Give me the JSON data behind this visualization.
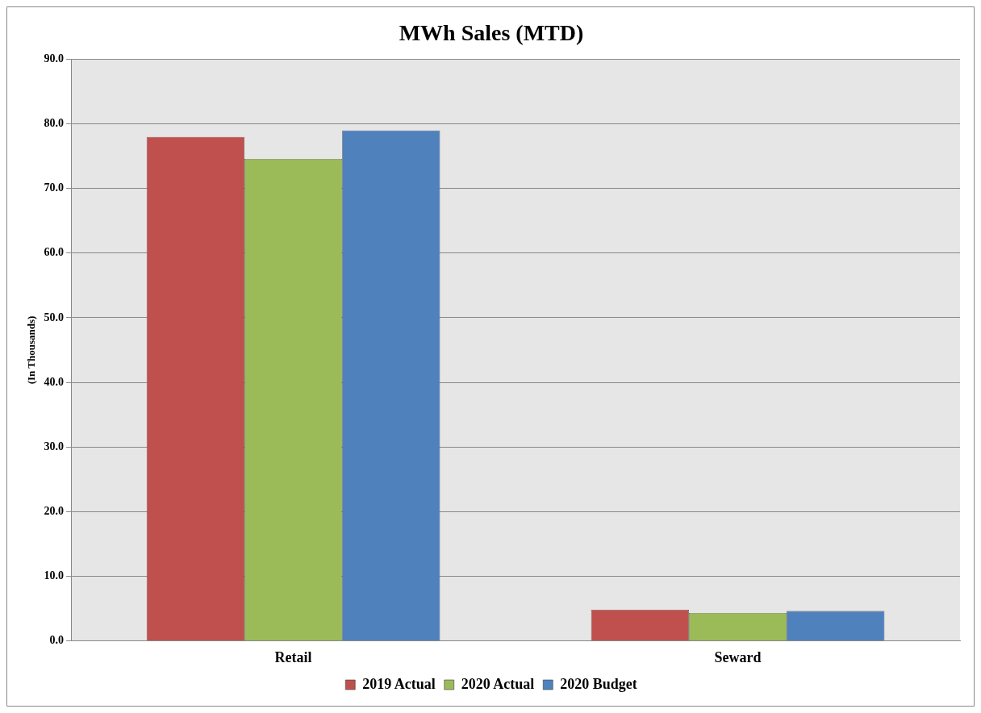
{
  "chart_data": {
    "type": "bar",
    "title": "MWh Sales (MTD)",
    "ylabel": "(In Thousands)",
    "categories": [
      "Retail",
      "Seward"
    ],
    "series": [
      {
        "name": "2019 Actual",
        "color": "#c0504d",
        "values": [
          78.0,
          4.8
        ]
      },
      {
        "name": "2020 Actual",
        "color": "#9bbb59",
        "values": [
          74.6,
          4.3
        ]
      },
      {
        "name": "2020 Budget",
        "color": "#4f81bd",
        "values": [
          79.0,
          4.6
        ]
      }
    ],
    "ylim": [
      0,
      90
    ],
    "yticks": [
      {
        "value": 0,
        "label": "0.0"
      },
      {
        "value": 10,
        "label": "10.0"
      },
      {
        "value": 20,
        "label": "20.0"
      },
      {
        "value": 30,
        "label": "30.0"
      },
      {
        "value": 40,
        "label": "40.0"
      },
      {
        "value": 50,
        "label": "50.0"
      },
      {
        "value": 60,
        "label": "60.0"
      },
      {
        "value": 70,
        "label": "70.0"
      },
      {
        "value": 80,
        "label": "80.0"
      },
      {
        "value": 90,
        "label": "90.0"
      }
    ],
    "grid": "y",
    "legend": "bottom"
  }
}
